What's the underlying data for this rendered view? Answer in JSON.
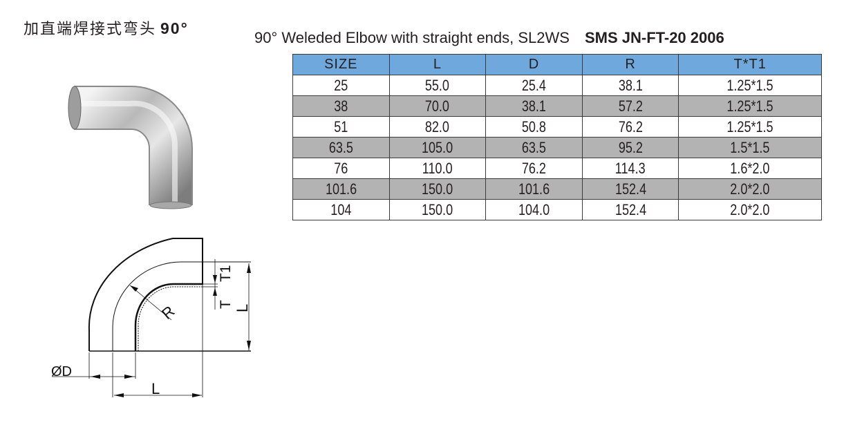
{
  "header": {
    "cn_title": "加直端焊接式弯头",
    "angle": "90°",
    "en_title": "90° Weleded Elbow with straight ends, SL2WS",
    "standard": "SMS  JN-FT-20 2006"
  },
  "table": {
    "columns": [
      "SIZE",
      "L",
      "D",
      "R",
      "T*T1"
    ],
    "rows": [
      [
        "25",
        "55.0",
        "25.4",
        "38.1",
        "1.25*1.5"
      ],
      [
        "38",
        "70.0",
        "38.1",
        "57.2",
        "1.25*1.5"
      ],
      [
        "51",
        "82.0",
        "50.8",
        "76.2",
        "1.25*1.5"
      ],
      [
        "63.5",
        "105.0",
        "63.5",
        "95.2",
        "1.5*1.5"
      ],
      [
        "76",
        "110.0",
        "76.2",
        "114.3",
        "1.6*2.0"
      ],
      [
        "101.6",
        "150.0",
        "101.6",
        "152.4",
        "2.0*2.0"
      ],
      [
        "104",
        "150.0",
        "104.0",
        "152.4",
        "2.0*2.0"
      ]
    ],
    "header_color": "#6fa8dc",
    "alt_row_color": "#b3b3b3"
  },
  "drawing": {
    "label_d": "ØD",
    "label_l_bottom": "L",
    "label_l_side": "L",
    "label_r": "R",
    "label_t": "T",
    "label_t1": "T1"
  }
}
